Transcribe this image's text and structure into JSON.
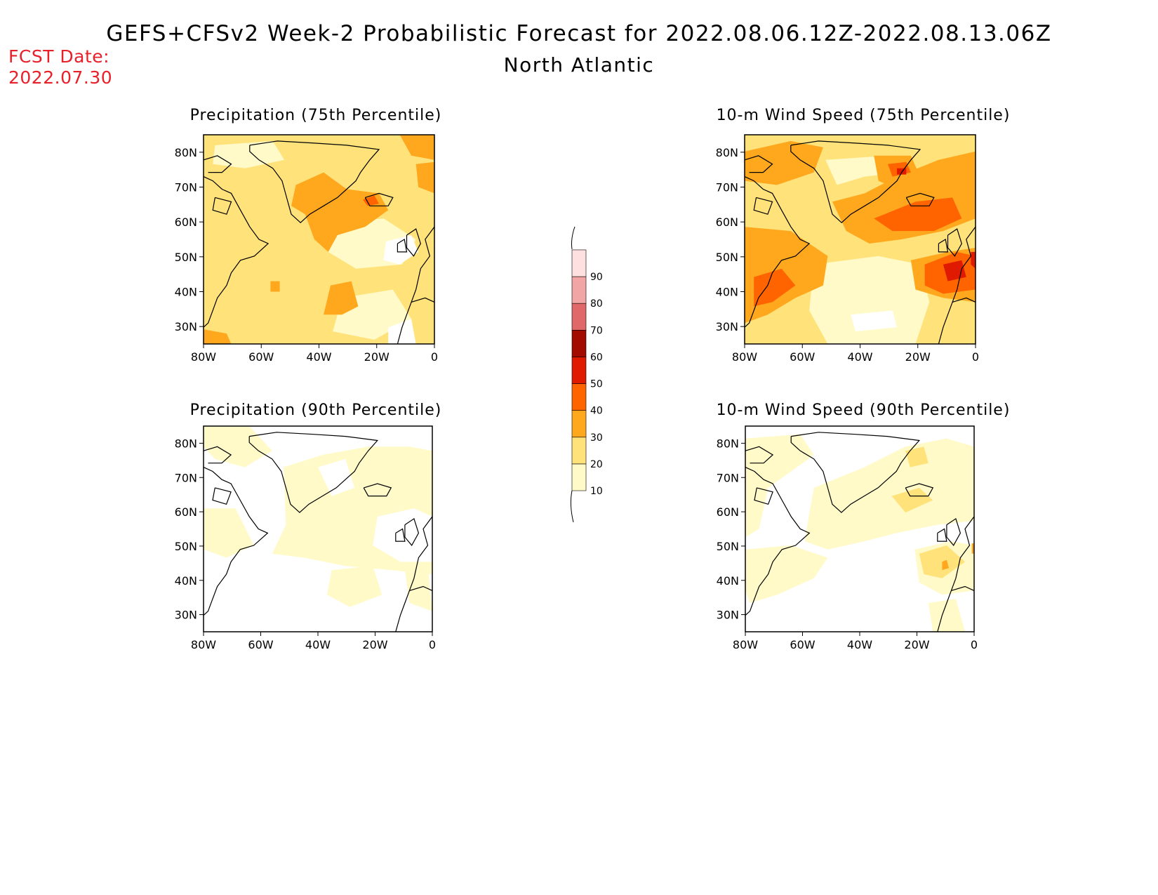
{
  "header": {
    "title": "GEFS+CFSv2 Week-2 Probabilistic Forecast for 2022.08.06.12Z-2022.08.13.06Z",
    "region": "North Atlantic",
    "fcst_date_label": "FCST Date:",
    "fcst_date_value": "2022.07.30"
  },
  "map": {
    "lat_ticks": [
      "80N",
      "70N",
      "60N",
      "50N",
      "40N",
      "30N"
    ],
    "lon_ticks": [
      "80W",
      "60W",
      "40W",
      "20W",
      "0"
    ],
    "extent": {
      "lon": [
        -80,
        0
      ],
      "lat": [
        25,
        85
      ]
    }
  },
  "panels": [
    {
      "id": "precip75",
      "title": "Precipitation (75th Percentile)"
    },
    {
      "id": "wind75",
      "title": "10-m Wind Speed (75th Percentile)"
    },
    {
      "id": "precip90",
      "title": "Precipitation (90th Percentile)"
    },
    {
      "id": "wind90",
      "title": "10-m Wind Speed (90th Percentile)"
    }
  ],
  "colorbar": {
    "levels": [
      "10",
      "20",
      "30",
      "40",
      "50",
      "60",
      "70",
      "80",
      "90"
    ],
    "colors": [
      "#fffac8",
      "#ffe27a",
      "#ffa81e",
      "#ff6400",
      "#e01a00",
      "#a30a00",
      "#e06868",
      "#f2a5a5",
      "#ffe0e0"
    ]
  }
}
